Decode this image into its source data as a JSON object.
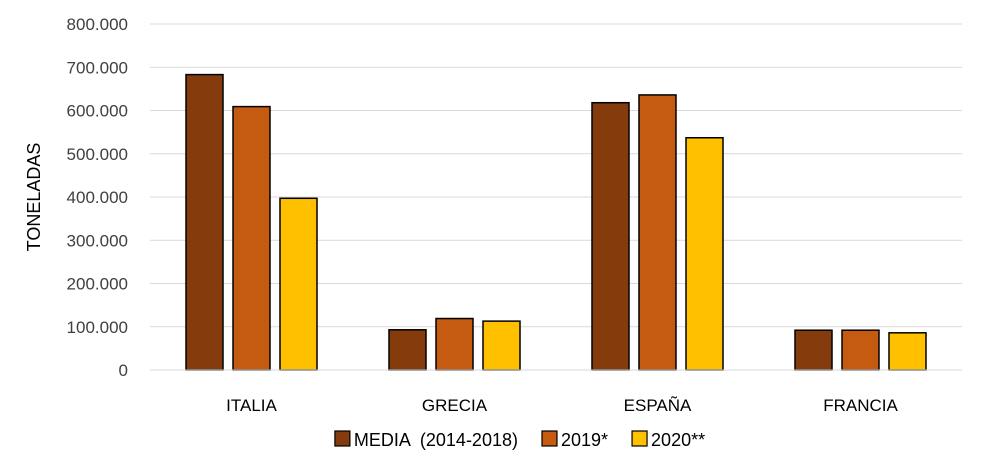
{
  "chart_data": {
    "type": "bar",
    "title": "",
    "xlabel": "",
    "ylabel": "TONELADAS",
    "ylim": [
      0,
      800000
    ],
    "yticks": [
      0,
      100000,
      200000,
      300000,
      400000,
      500000,
      600000,
      700000,
      800000
    ],
    "ytick_labels": [
      "0",
      "100.000",
      "200.000",
      "300.000",
      "400.000",
      "500.000",
      "600.000",
      "700.000",
      "800.000"
    ],
    "categories": [
      "ITALIA",
      "GRECIA",
      "ESPAÑA",
      "FRANCIA"
    ],
    "series": [
      {
        "name": "MEDIA  (2014-2018)",
        "color": "#843C0C",
        "values": [
          683000,
          93000,
          618000,
          92000
        ]
      },
      {
        "name": "2019*",
        "color": "#C55A11",
        "values": [
          609000,
          119000,
          636000,
          92000
        ]
      },
      {
        "name": "2020**",
        "color": "#FFC000",
        "values": [
          397000,
          113000,
          537000,
          86000
        ]
      }
    ],
    "grid": true,
    "legend_position": "bottom"
  }
}
